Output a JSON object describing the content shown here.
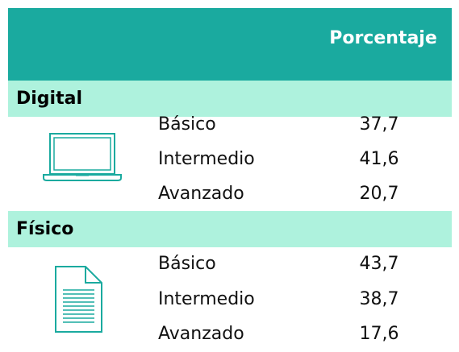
{
  "header": {
    "title": "Porcentaje"
  },
  "sections": [
    {
      "title": "Digital",
      "rows": [
        [
          "Básico",
          "37,7"
        ],
        [
          "Intermedio",
          "41,6"
        ],
        [
          "Avanzado",
          "20,7"
        ]
      ]
    },
    {
      "title": "Físico",
      "rows": [
        [
          "Básico",
          "43,7"
        ],
        [
          "Intermedio",
          "38,7"
        ],
        [
          "Avanzado",
          "17,6"
        ]
      ]
    }
  ]
}
